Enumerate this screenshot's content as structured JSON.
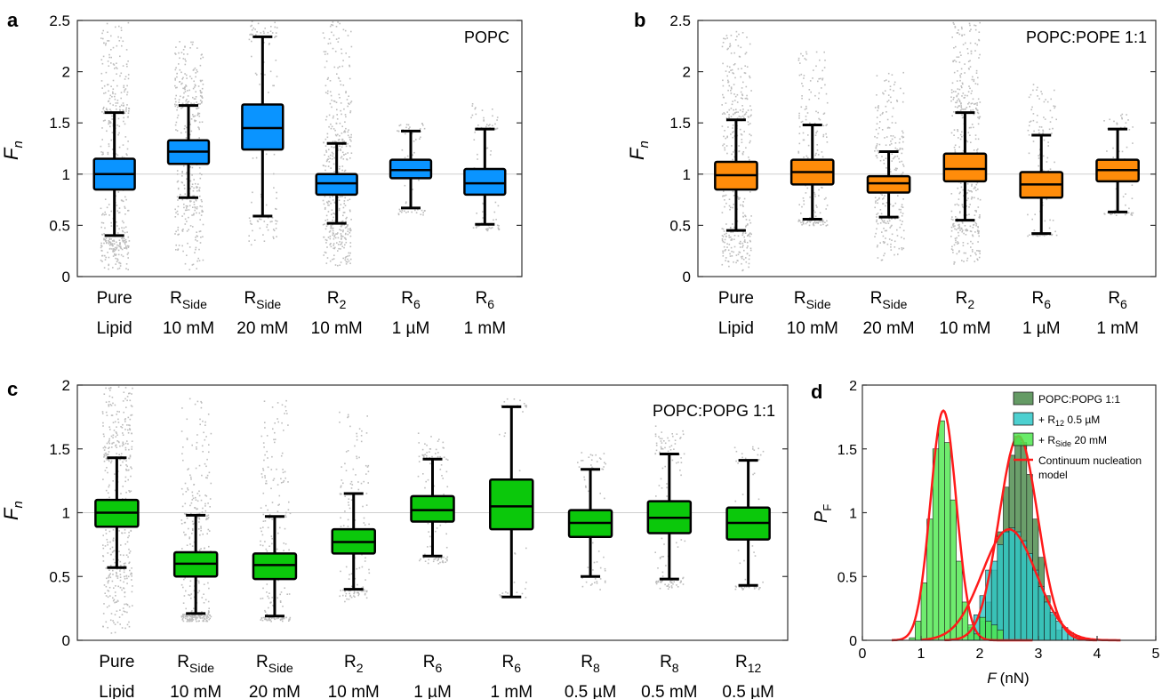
{
  "colors": {
    "panel_a_box": "#0a94ff",
    "panel_b_box": "#ff8c0a",
    "panel_c_box": "#0bc80b",
    "scatter": "#bdbdbd",
    "refline": "#cfcfcf",
    "hist_popg": "#4a8a4a",
    "hist_r12": "#2ec8c8",
    "hist_rside": "#4fe84f",
    "fit": "#ff1a1a"
  },
  "chart_data": [
    {
      "panel_label": "a",
      "type": "box",
      "title": "POPC",
      "ylabel": "F",
      "ylabel_sub": "n",
      "ylim": [
        0,
        2.5
      ],
      "yticks": [
        0,
        0.5,
        1,
        1.5,
        2,
        2.5
      ],
      "ytick_labels": [
        "0",
        "0.5",
        "1",
        "1.5",
        "2",
        "2.5"
      ],
      "reference_line": 1,
      "categories": [
        {
          "main": "Pure",
          "sub": "",
          "line2": "Lipid"
        },
        {
          "main": "R",
          "sub": "Side",
          "line2": "10 mM"
        },
        {
          "main": "R",
          "sub": "Side",
          "line2": "20 mM"
        },
        {
          "main": "R",
          "sub": "2",
          "line2": "10 mM"
        },
        {
          "main": "R",
          "sub": "6",
          "line2": "1 µM"
        },
        {
          "main": "R",
          "sub": "6",
          "line2": "1 mM"
        }
      ],
      "boxes": [
        {
          "low": 0.4,
          "q1": 0.85,
          "median": 1.0,
          "q3": 1.15,
          "high": 1.6,
          "scatter_span": [
            0.05,
            2.5
          ],
          "scatter_density": 1.0
        },
        {
          "low": 0.77,
          "q1": 1.1,
          "median": 1.22,
          "q3": 1.33,
          "high": 1.67,
          "scatter_span": [
            0.05,
            2.3
          ],
          "scatter_density": 0.9
        },
        {
          "low": 0.59,
          "q1": 1.24,
          "median": 1.45,
          "q3": 1.68,
          "high": 2.34,
          "scatter_span": [
            0.3,
            2.5
          ],
          "scatter_density": 0.25
        },
        {
          "low": 0.52,
          "q1": 0.8,
          "median": 0.91,
          "q3": 1.0,
          "high": 1.3,
          "scatter_span": [
            0.1,
            2.5
          ],
          "scatter_density": 1.0
        },
        {
          "low": 0.67,
          "q1": 0.96,
          "median": 1.04,
          "q3": 1.14,
          "high": 1.42,
          "scatter_span": [
            0.6,
            1.5
          ],
          "scatter_density": 0.15
        },
        {
          "low": 0.51,
          "q1": 0.8,
          "median": 0.91,
          "q3": 1.05,
          "high": 1.44,
          "scatter_span": [
            0.45,
            1.7
          ],
          "scatter_density": 0.2
        }
      ]
    },
    {
      "panel_label": "b",
      "type": "box",
      "title": "POPC:POPE 1:1",
      "ylabel": "F",
      "ylabel_sub": "n",
      "ylim": [
        0,
        2.5
      ],
      "yticks": [
        0,
        0.5,
        1,
        1.5,
        2,
        2.5
      ],
      "ytick_labels": [
        "0",
        "0.5",
        "1",
        "1.5",
        "2",
        "2.5"
      ],
      "reference_line": 1,
      "categories": [
        {
          "main": "Pure",
          "sub": "",
          "line2": "Lipid"
        },
        {
          "main": "R",
          "sub": "Side",
          "line2": "10 mM"
        },
        {
          "main": "R",
          "sub": "Side",
          "line2": "20 mM"
        },
        {
          "main": "R",
          "sub": "2",
          "line2": "10 mM"
        },
        {
          "main": "R",
          "sub": "6",
          "line2": "1 µM"
        },
        {
          "main": "R",
          "sub": "6",
          "line2": "1 mM"
        }
      ],
      "boxes": [
        {
          "low": 0.45,
          "q1": 0.85,
          "median": 0.99,
          "q3": 1.12,
          "high": 1.53,
          "scatter_span": [
            0.05,
            2.4
          ],
          "scatter_density": 0.9
        },
        {
          "low": 0.56,
          "q1": 0.9,
          "median": 1.02,
          "q3": 1.14,
          "high": 1.48,
          "scatter_span": [
            0.5,
            2.2
          ],
          "scatter_density": 0.45
        },
        {
          "low": 0.58,
          "q1": 0.82,
          "median": 0.91,
          "q3": 0.98,
          "high": 1.22,
          "scatter_span": [
            0.15,
            2.0
          ],
          "scatter_density": 0.6
        },
        {
          "low": 0.55,
          "q1": 0.93,
          "median": 1.05,
          "q3": 1.2,
          "high": 1.6,
          "scatter_span": [
            0.1,
            2.5
          ],
          "scatter_density": 1.0
        },
        {
          "low": 0.42,
          "q1": 0.77,
          "median": 0.9,
          "q3": 1.02,
          "high": 1.38,
          "scatter_span": [
            0.4,
            1.9
          ],
          "scatter_density": 0.3
        },
        {
          "low": 0.63,
          "q1": 0.93,
          "median": 1.04,
          "q3": 1.14,
          "high": 1.44,
          "scatter_span": [
            0.6,
            1.6
          ],
          "scatter_density": 0.15
        }
      ]
    },
    {
      "panel_label": "c",
      "type": "box",
      "title": "POPC:POPG 1:1",
      "ylabel": "F",
      "ylabel_sub": "n",
      "ylim": [
        0,
        2
      ],
      "yticks": [
        0,
        0.5,
        1,
        1.5,
        2
      ],
      "ytick_labels": [
        "0",
        "0.5",
        "1",
        "1.5",
        "2"
      ],
      "reference_line": 1,
      "categories": [
        {
          "main": "Pure",
          "sub": "",
          "line2": "Lipid"
        },
        {
          "main": "R",
          "sub": "Side",
          "line2": "10 mM"
        },
        {
          "main": "R",
          "sub": "Side",
          "line2": "20 mM"
        },
        {
          "main": "R",
          "sub": "2",
          "line2": "10 mM"
        },
        {
          "main": "R",
          "sub": "6",
          "line2": "1 µM"
        },
        {
          "main": "R",
          "sub": "6",
          "line2": "1 mM"
        },
        {
          "main": "R",
          "sub": "8",
          "line2": "0.5 µM"
        },
        {
          "main": "R",
          "sub": "8",
          "line2": "0.5 mM"
        },
        {
          "main": "R",
          "sub": "12",
          "line2": "0.5 µM"
        }
      ],
      "boxes": [
        {
          "low": 0.57,
          "q1": 0.89,
          "median": 1.0,
          "q3": 1.1,
          "high": 1.43,
          "scatter_span": [
            0.05,
            2.0
          ],
          "scatter_density": 1.0
        },
        {
          "low": 0.21,
          "q1": 0.5,
          "median": 0.6,
          "q3": 0.69,
          "high": 0.98,
          "scatter_span": [
            0.15,
            1.9
          ],
          "scatter_density": 0.8
        },
        {
          "low": 0.19,
          "q1": 0.48,
          "median": 0.59,
          "q3": 0.68,
          "high": 0.97,
          "scatter_span": [
            0.15,
            1.9
          ],
          "scatter_density": 0.5
        },
        {
          "low": 0.4,
          "q1": 0.68,
          "median": 0.77,
          "q3": 0.87,
          "high": 1.15,
          "scatter_span": [
            0.3,
            1.8
          ],
          "scatter_density": 0.35
        },
        {
          "low": 0.66,
          "q1": 0.93,
          "median": 1.02,
          "q3": 1.13,
          "high": 1.42,
          "scatter_span": [
            0.6,
            1.65
          ],
          "scatter_density": 0.25
        },
        {
          "low": 0.34,
          "q1": 0.87,
          "median": 1.05,
          "q3": 1.26,
          "high": 1.83,
          "scatter_span": [
            0.4,
            1.9
          ],
          "scatter_density": 0.1
        },
        {
          "low": 0.5,
          "q1": 0.81,
          "median": 0.92,
          "q3": 1.02,
          "high": 1.34,
          "scatter_span": [
            0.4,
            1.5
          ],
          "scatter_density": 0.15
        },
        {
          "low": 0.48,
          "q1": 0.84,
          "median": 0.96,
          "q3": 1.09,
          "high": 1.46,
          "scatter_span": [
            0.4,
            1.7
          ],
          "scatter_density": 0.3
        },
        {
          "low": 0.43,
          "q1": 0.79,
          "median": 0.92,
          "q3": 1.04,
          "high": 1.41,
          "scatter_span": [
            0.4,
            1.55
          ],
          "scatter_density": 0.15
        }
      ]
    },
    {
      "panel_label": "d",
      "type": "histogram",
      "ylabel": "P",
      "ylabel_sub": "F",
      "xlabel": "F",
      "xlabel_unit": "(nN)",
      "xlim": [
        0,
        5
      ],
      "ylim": [
        0,
        2
      ],
      "xticks": [
        0,
        1,
        2,
        3,
        4,
        5
      ],
      "xtick_labels": [
        "0",
        "1",
        "2",
        "3",
        "4",
        "5"
      ],
      "yticks": [
        0,
        0.5,
        1,
        1.5,
        2
      ],
      "ytick_labels": [
        "0",
        "0.5",
        "1",
        "1.5",
        "2"
      ],
      "legend_position": "top-right",
      "legend": [
        {
          "label": "POPC:POPG 1:1",
          "sub": "",
          "suffix": "",
          "kind": "patch",
          "color_key": "hist_popg"
        },
        {
          "label": "+ R",
          "sub": "12",
          "suffix": " 0.5 µM",
          "kind": "patch",
          "color_key": "hist_r12"
        },
        {
          "label": "+ R",
          "sub": "Side",
          "suffix": " 20 mM",
          "kind": "patch",
          "color_key": "hist_rside"
        },
        {
          "label": "Continuum nucleation",
          "sub": "",
          "suffix": "",
          "line2": "model",
          "kind": "line",
          "color_key": "fit"
        }
      ],
      "bin_width": 0.1,
      "series": [
        {
          "name": "POPC:POPG 1:1",
          "color_key": "hist_popg",
          "bin_starts": [
            1.9,
            2.0,
            2.1,
            2.2,
            2.3,
            2.4,
            2.5,
            2.6,
            2.7,
            2.8,
            2.9,
            3.0,
            3.1,
            3.2,
            3.3
          ],
          "values": [
            0.05,
            0.15,
            0.3,
            0.55,
            0.85,
            1.2,
            1.45,
            1.6,
            1.55,
            1.3,
            0.95,
            0.65,
            0.35,
            0.2,
            0.08
          ]
        },
        {
          "name": "+ R12 0.5 µM",
          "color_key": "hist_r12",
          "bin_starts": [
            1.8,
            1.9,
            2.0,
            2.1,
            2.2,
            2.3,
            2.4,
            2.5,
            2.6,
            2.7,
            2.8,
            2.9,
            3.0,
            3.1,
            3.2,
            3.3,
            3.4,
            3.5,
            3.6,
            3.7
          ],
          "values": [
            0.1,
            0.2,
            0.35,
            0.55,
            0.62,
            0.75,
            0.85,
            0.88,
            0.85,
            0.78,
            0.68,
            0.55,
            0.42,
            0.3,
            0.22,
            0.15,
            0.1,
            0.06,
            0.03,
            0.02
          ]
        },
        {
          "name": "+ RSide 20 mM",
          "color_key": "hist_rside",
          "bin_starts": [
            0.8,
            0.9,
            1.0,
            1.1,
            1.2,
            1.3,
            1.4,
            1.5,
            1.6,
            1.7,
            1.8,
            1.9,
            2.0,
            2.1,
            2.2,
            2.3
          ],
          "values": [
            0.02,
            0.15,
            0.45,
            0.95,
            1.5,
            1.72,
            1.55,
            1.1,
            0.62,
            0.3,
            0.12,
            0.05,
            0.18,
            0.15,
            0.12,
            0.08
          ]
        }
      ],
      "fits": [
        {
          "mu": 1.38,
          "sigma": 0.22,
          "peak": 1.8,
          "x_range": [
            0.5,
            2.9
          ]
        },
        {
          "mu": 2.66,
          "sigma": 0.33,
          "peak": 1.6,
          "x_range": [
            1.4,
            4.0
          ]
        },
        {
          "mu": 2.5,
          "sigma": 0.46,
          "peak": 0.87,
          "x_range": [
            1.0,
            4.4
          ]
        }
      ]
    }
  ]
}
